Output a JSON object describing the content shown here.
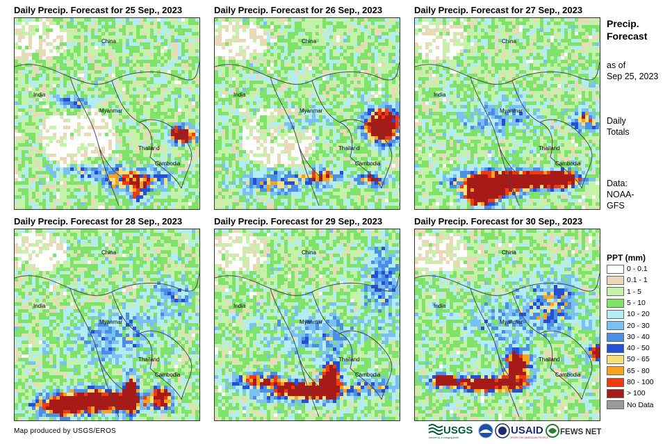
{
  "panels": [
    {
      "title": "Daily Precip. Forecast for 25 Sep., 2023"
    },
    {
      "title": "Daily Precip. Forecast for 26 Sep., 2023"
    },
    {
      "title": "Daily Precip. Forecast for 27 Sep., 2023"
    },
    {
      "title": "Daily Precip. Forecast for 28 Sep., 2023"
    },
    {
      "title": "Daily Precip. Forecast for 29 Sep., 2023"
    },
    {
      "title": "Daily Precip. Forecast for 30 Sep., 2023"
    }
  ],
  "map_labels": {
    "china": "China",
    "india": "India",
    "myanmar": "Myanmar",
    "thailand": "Thailand",
    "cambodia": "Cambodia"
  },
  "sidebar": {
    "title_line1": "Precip.",
    "title_line2": "Forecast",
    "asof_line1": "as of",
    "asof_line2": "Sep 25, 2023",
    "daily_line1": "Daily",
    "daily_line2": "Totals",
    "data_line1": "Data:",
    "data_line2": "NOAA-",
    "data_line3": "GFS"
  },
  "legend": {
    "title": "PPT (mm)",
    "items": [
      {
        "label": "0 - 0.1",
        "color": "#ffffff"
      },
      {
        "label": "0.1 - 1",
        "color": "#ead8b8"
      },
      {
        "label": "1 - 5",
        "color": "#c4f2a8"
      },
      {
        "label": "5 - 10",
        "color": "#7fe36a"
      },
      {
        "label": "10 - 20",
        "color": "#b4ecf6"
      },
      {
        "label": "20 - 30",
        "color": "#7ac0f2"
      },
      {
        "label": "30 - 40",
        "color": "#4a8ee8"
      },
      {
        "label": "40 - 50",
        "color": "#2450d8"
      },
      {
        "label": "50 - 65",
        "color": "#f7e07a"
      },
      {
        "label": "65 - 80",
        "color": "#f6a21e"
      },
      {
        "label": "80 - 100",
        "color": "#f23a10"
      },
      {
        "label": "> 100",
        "color": "#a61a18"
      },
      {
        "label": "No Data",
        "color": "#999999"
      }
    ]
  },
  "footer": {
    "credit": "Map produced by USGS/EROS",
    "logo_usgs": "USGS",
    "logo_usgs_tagline": "science for a changing world",
    "logo_usaid": "USAID",
    "logo_usaid_tagline": "FROM THE AMERICAN PEOPLE",
    "logo_fewsnet": "FEWS NET"
  }
}
